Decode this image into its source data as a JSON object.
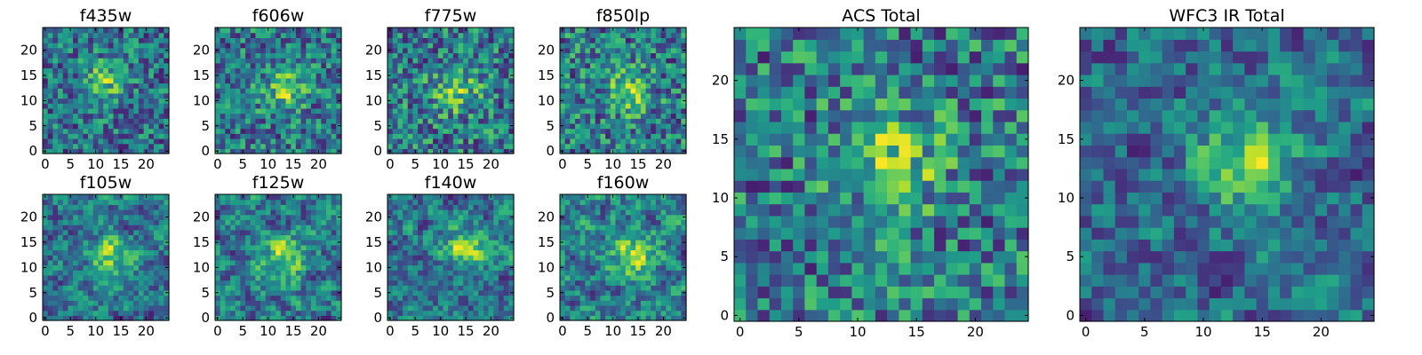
{
  "colors": {
    "colormap": "viridis",
    "axis_frame": "#000000",
    "background": "#ffffff"
  },
  "chart_data": [
    {
      "type": "heatmap",
      "title": "f435w",
      "grid_size": 25,
      "xlim": [
        -0.5,
        24.5
      ],
      "ylim": [
        -0.5,
        24.5
      ],
      "xticks": [
        0,
        5,
        10,
        15,
        20
      ],
      "yticks": [
        0,
        5,
        10,
        15,
        20
      ],
      "texture": "noise",
      "peak": [
        12,
        14
      ]
    },
    {
      "type": "heatmap",
      "title": "f606w",
      "grid_size": 25,
      "xlim": [
        -0.5,
        24.5
      ],
      "ylim": [
        -0.5,
        24.5
      ],
      "xticks": [
        0,
        5,
        10,
        15,
        20
      ],
      "yticks": [
        0,
        5,
        10,
        15,
        20
      ],
      "texture": "noise",
      "peak": [
        13,
        12
      ]
    },
    {
      "type": "heatmap",
      "title": "f775w",
      "grid_size": 25,
      "xlim": [
        -0.5,
        24.5
      ],
      "ylim": [
        -0.5,
        24.5
      ],
      "xticks": [
        0,
        5,
        10,
        15,
        20
      ],
      "yticks": [
        0,
        5,
        10,
        15,
        20
      ],
      "texture": "noise",
      "peak": [
        13,
        12
      ]
    },
    {
      "type": "heatmap",
      "title": "f850lp",
      "grid_size": 25,
      "xlim": [
        -0.5,
        24.5
      ],
      "ylim": [
        -0.5,
        24.5
      ],
      "xticks": [
        0,
        5,
        10,
        15,
        20
      ],
      "yticks": [
        0,
        5,
        10,
        15,
        20
      ],
      "texture": "noise",
      "peak": [
        13,
        12
      ]
    },
    {
      "type": "heatmap",
      "title": "f105w",
      "grid_size": 25,
      "xlim": [
        -0.5,
        24.5
      ],
      "ylim": [
        -0.5,
        24.5
      ],
      "xticks": [
        0,
        5,
        10,
        15,
        20
      ],
      "yticks": [
        0,
        5,
        10,
        15,
        20
      ],
      "texture": "smooth",
      "peak": [
        13,
        12
      ]
    },
    {
      "type": "heatmap",
      "title": "f125w",
      "grid_size": 25,
      "xlim": [
        -0.5,
        24.5
      ],
      "ylim": [
        -0.5,
        24.5
      ],
      "xticks": [
        0,
        5,
        10,
        15,
        20
      ],
      "yticks": [
        0,
        5,
        10,
        15,
        20
      ],
      "texture": "smooth",
      "peak": [
        13,
        12
      ]
    },
    {
      "type": "heatmap",
      "title": "f140w",
      "grid_size": 25,
      "xlim": [
        -0.5,
        24.5
      ],
      "ylim": [
        -0.5,
        24.5
      ],
      "xticks": [
        0,
        5,
        10,
        15,
        20
      ],
      "yticks": [
        0,
        5,
        10,
        15,
        20
      ],
      "texture": "smooth",
      "peak": [
        15,
        14
      ]
    },
    {
      "type": "heatmap",
      "title": "f160w",
      "grid_size": 25,
      "xlim": [
        -0.5,
        24.5
      ],
      "ylim": [
        -0.5,
        24.5
      ],
      "xticks": [
        0,
        5,
        10,
        15,
        20
      ],
      "yticks": [
        0,
        5,
        10,
        15,
        20
      ],
      "texture": "smooth",
      "peak": [
        14,
        12
      ]
    },
    {
      "type": "heatmap",
      "title": "ACS Total",
      "grid_size": 25,
      "xlim": [
        -0.5,
        24.5
      ],
      "ylim": [
        -0.5,
        24.5
      ],
      "xticks": [
        0,
        5,
        10,
        15,
        20
      ],
      "yticks": [
        0,
        5,
        10,
        15,
        20
      ],
      "texture": "noise",
      "peak": [
        13,
        13
      ]
    },
    {
      "type": "heatmap",
      "title": "WFC3 IR Total",
      "grid_size": 25,
      "xlim": [
        -0.5,
        24.5
      ],
      "ylim": [
        -0.5,
        24.5
      ],
      "xticks": [
        0,
        5,
        10,
        15,
        20
      ],
      "yticks": [
        0,
        5,
        10,
        15,
        20
      ],
      "texture": "smooth",
      "peak": [
        14,
        13
      ]
    }
  ]
}
